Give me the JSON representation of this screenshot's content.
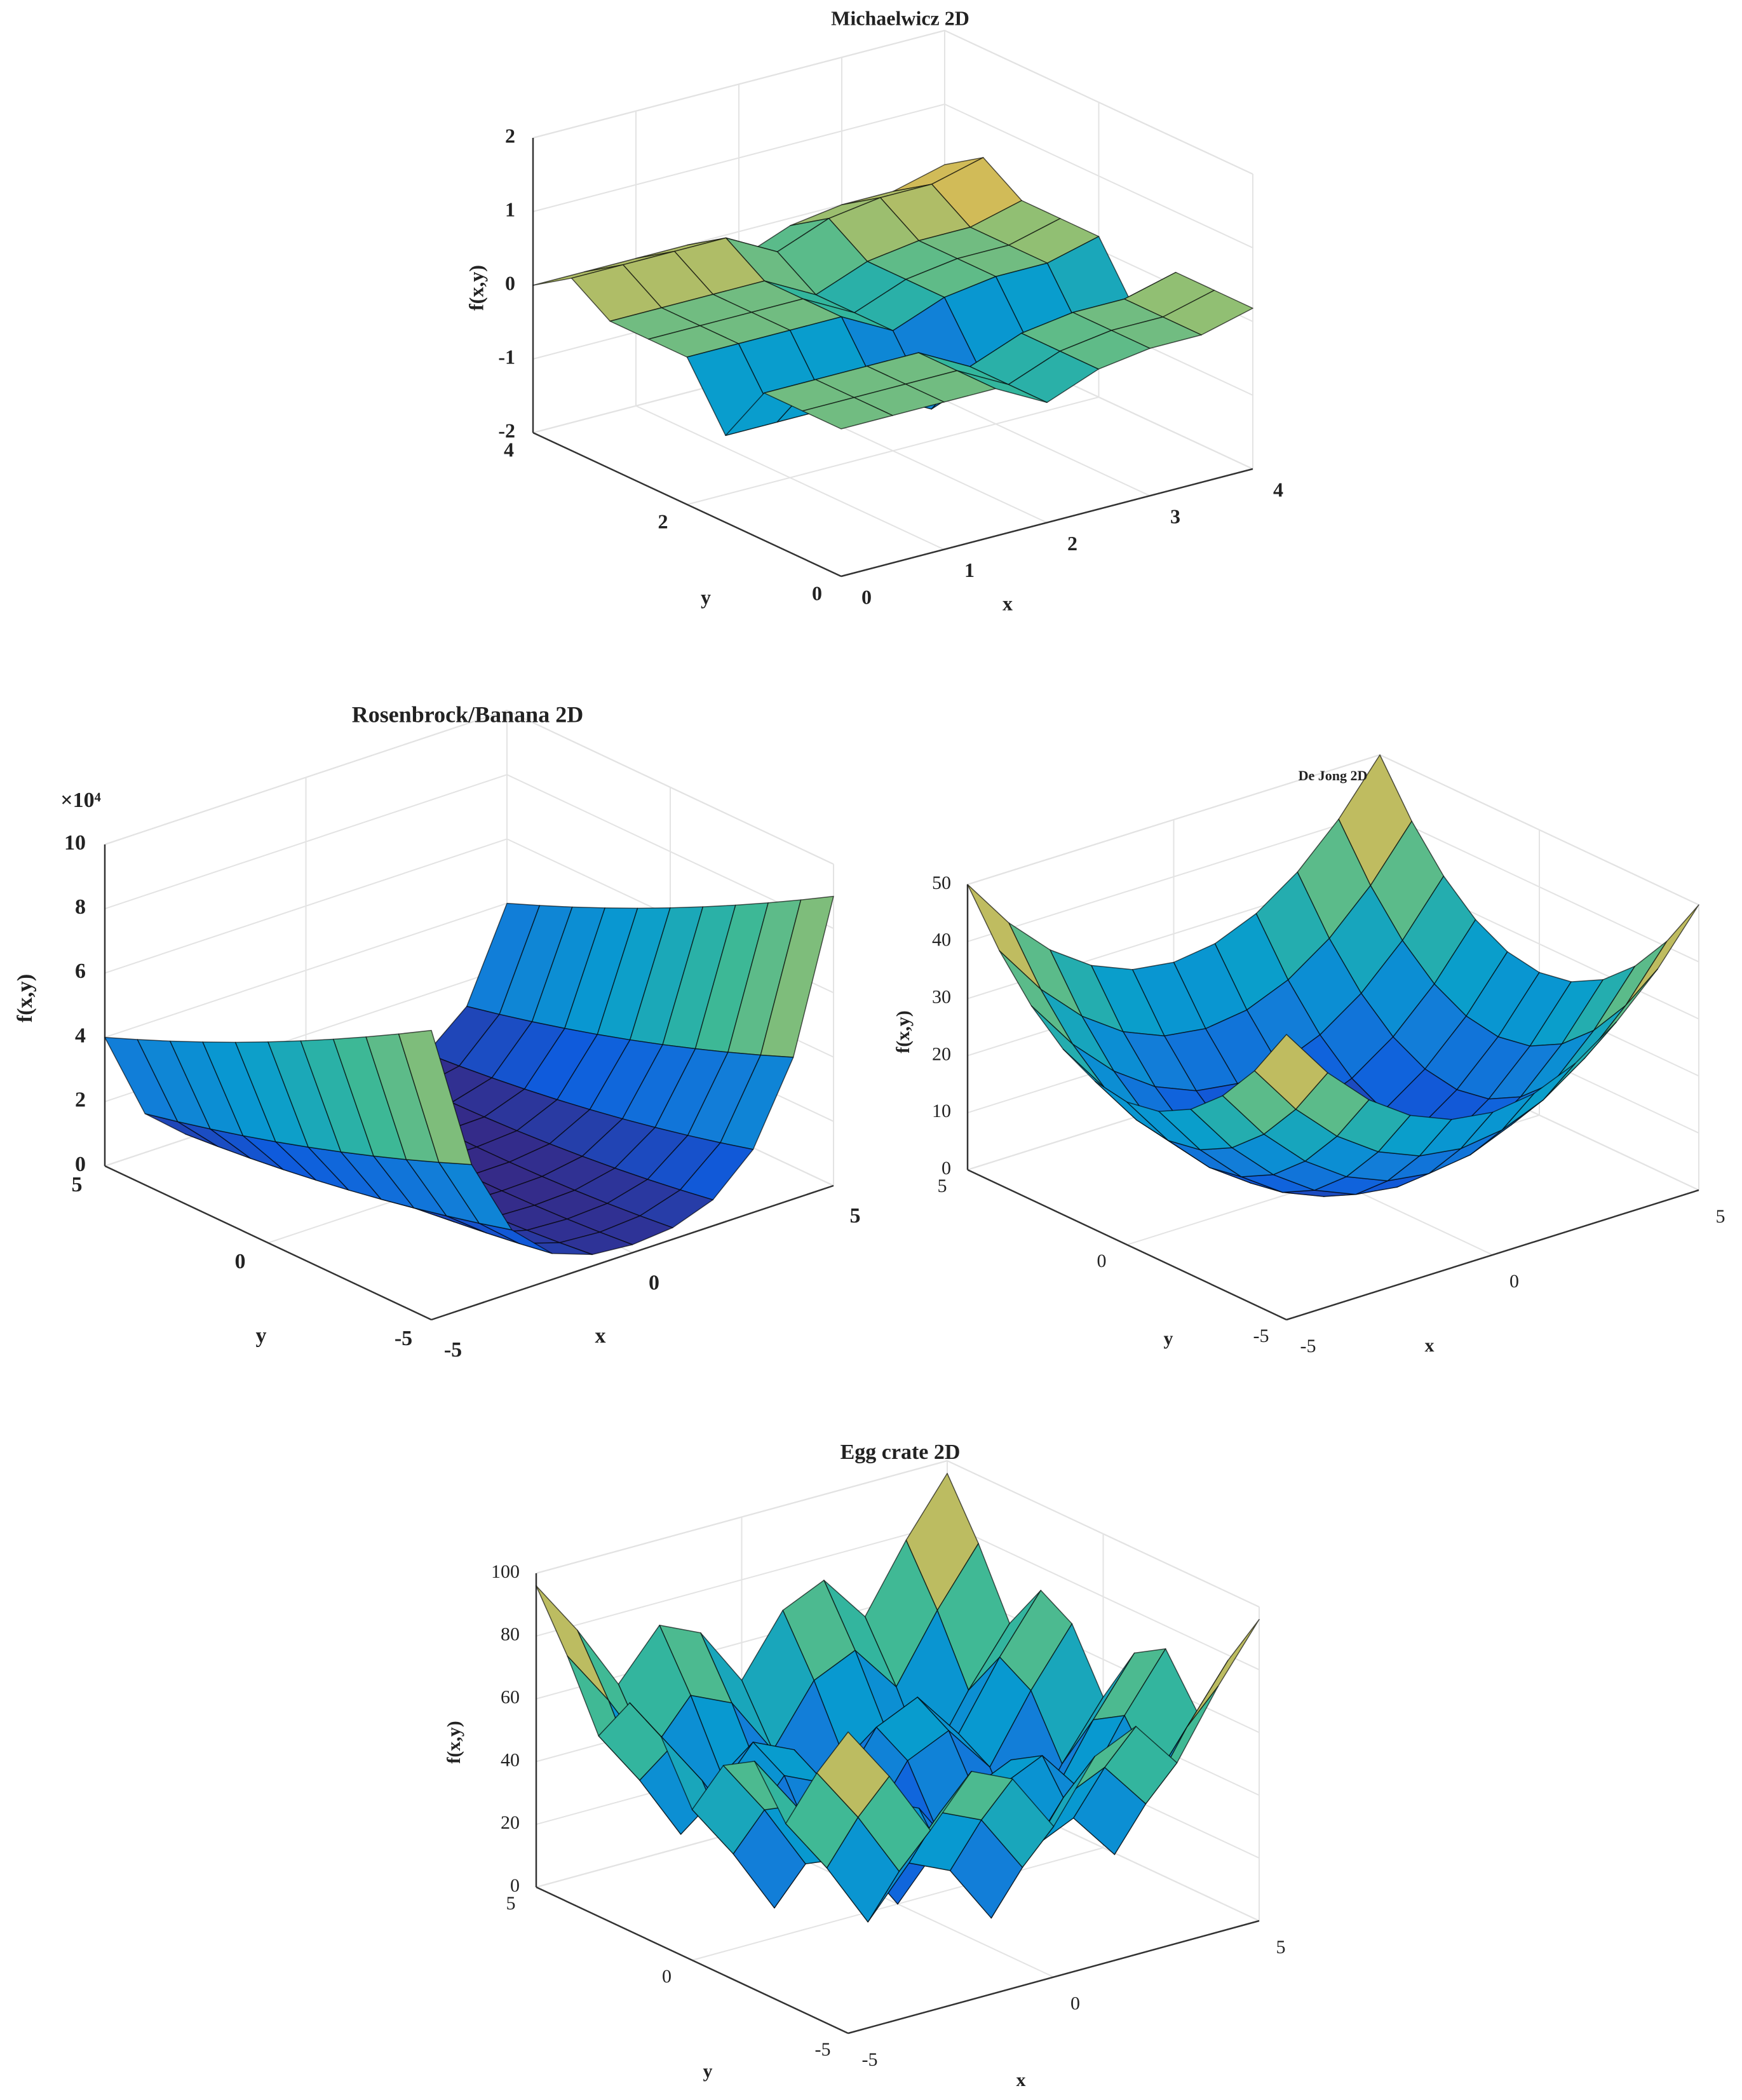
{
  "chart_data": [
    {
      "type": "surface",
      "title": "Michaelwicz 2D",
      "xlabel": "x",
      "ylabel": "y",
      "zlabel": "f(x,y)",
      "x": [
        0,
        0.5,
        1,
        1.5,
        2,
        2.5,
        3,
        3.5,
        4
      ],
      "y": [
        0,
        0.5,
        1,
        1.5,
        2,
        2.5,
        3,
        3.5,
        4
      ],
      "z": [
        [
          0,
          0,
          0,
          0,
          -0.37,
          -0.1,
          0,
          0,
          0.18
        ],
        [
          0,
          0,
          0,
          0,
          -0.37,
          -0.1,
          0,
          0,
          0.18
        ],
        [
          0,
          0,
          0,
          0,
          -0.37,
          -0.1,
          0,
          0,
          0.18
        ],
        [
          -0.82,
          -0.82,
          -0.82,
          -0.82,
          -1.19,
          -0.92,
          -0.82,
          -0.82,
          -0.64
        ],
        [
          0,
          0,
          0,
          0,
          -0.37,
          -0.1,
          0,
          0,
          0.18
        ],
        [
          0,
          0,
          0,
          0,
          -0.37,
          -0.1,
          0,
          0,
          0.18
        ],
        [
          0,
          0,
          0,
          0,
          -0.37,
          -0.1,
          0,
          0,
          0.18
        ],
        [
          0.34,
          0.34,
          0.34,
          0.34,
          -0.03,
          0.24,
          0.34,
          0.34,
          0.52
        ],
        [
          0,
          0,
          0,
          0,
          -0.37,
          -0.1,
          0,
          0,
          0.18
        ]
      ],
      "xlim": [
        0,
        4
      ],
      "ylim": [
        0,
        4
      ],
      "zlim": [
        -2,
        2
      ],
      "xticks": [
        0,
        1,
        2,
        3,
        4
      ],
      "yticks": [
        0,
        2,
        4
      ],
      "zticks": [
        -2,
        -1,
        0,
        1,
        2
      ],
      "grid": true,
      "colormap": "parula"
    },
    {
      "type": "surface",
      "title": "Rosenbrock/Banana 2D",
      "xlabel": "x",
      "ylabel": "y",
      "zlabel": "f(x,y)",
      "zexponent": "×10⁴",
      "x": [
        -5,
        -4,
        -3,
        -2,
        -1,
        0,
        1,
        2,
        3,
        4,
        5
      ],
      "y": [
        -5,
        -4,
        -3,
        -2,
        -1,
        0,
        1,
        2,
        3,
        4,
        5
      ],
      "z": [
        [
          9,
          4.41,
          1.96,
          0.81,
          0.36,
          0.25,
          0.36,
          0.81,
          1.96,
          4.41,
          9
        ],
        [
          8.41,
          4,
          1.69,
          0.64,
          0.25,
          0.16,
          0.25,
          0.64,
          1.69,
          4,
          8.41
        ],
        [
          7.84,
          3.61,
          1.44,
          0.49,
          0.16,
          0.09,
          0.16,
          0.49,
          1.44,
          3.61,
          7.84
        ],
        [
          7.29,
          3.24,
          1.21,
          0.36,
          0.09,
          0.04,
          0.09,
          0.36,
          1.21,
          3.24,
          7.29
        ],
        [
          6.76,
          2.89,
          1,
          0.25,
          0.04,
          0.01,
          0.04,
          0.25,
          1,
          2.89,
          6.76
        ],
        [
          6.25,
          2.56,
          0.81,
          0.16,
          0.01,
          0,
          0.01,
          0.16,
          0.81,
          2.56,
          6.25
        ],
        [
          5.76,
          2.25,
          0.64,
          0.09,
          0,
          0.01,
          0,
          0.09,
          0.64,
          2.25,
          5.76
        ],
        [
          5.29,
          1.96,
          0.49,
          0.04,
          0.01,
          0.04,
          0.01,
          0.04,
          0.49,
          1.96,
          5.29
        ],
        [
          4.84,
          1.69,
          0.36,
          0.01,
          0.04,
          0.09,
          0.04,
          0.01,
          0.36,
          1.69,
          4.84
        ],
        [
          4.41,
          1.44,
          0.25,
          0,
          0.09,
          0.16,
          0.09,
          0,
          0.25,
          1.44,
          4.41
        ],
        [
          4,
          1.21,
          0.16,
          0.01,
          0.16,
          0.25,
          0.16,
          0.01,
          0.16,
          1.21,
          4
        ]
      ],
      "xlim": [
        -5,
        5
      ],
      "ylim": [
        -5,
        5
      ],
      "zlim": [
        0,
        10
      ],
      "xticks": [
        -5,
        0,
        5
      ],
      "yticks": [
        -5,
        0,
        5
      ],
      "zticks": [
        0,
        2,
        4,
        6,
        8,
        10
      ],
      "grid": true,
      "colormap": "parula"
    },
    {
      "type": "surface",
      "title": "De Jong 2D",
      "xlabel": "x",
      "ylabel": "y",
      "zlabel": "f(x,y)",
      "x": [
        -5,
        -4,
        -3,
        -2,
        -1,
        0,
        1,
        2,
        3,
        4,
        5
      ],
      "y": [
        -5,
        -4,
        -3,
        -2,
        -1,
        0,
        1,
        2,
        3,
        4,
        5
      ],
      "z": [
        [
          50,
          41,
          34,
          29,
          26,
          25,
          26,
          29,
          34,
          41,
          50
        ],
        [
          41,
          32,
          25,
          20,
          17,
          16,
          17,
          20,
          25,
          32,
          41
        ],
        [
          34,
          25,
          18,
          13,
          10,
          9,
          10,
          13,
          18,
          25,
          34
        ],
        [
          29,
          20,
          13,
          8,
          5,
          4,
          5,
          8,
          13,
          20,
          29
        ],
        [
          26,
          17,
          10,
          5,
          2,
          1,
          2,
          5,
          10,
          17,
          26
        ],
        [
          25,
          16,
          9,
          4,
          1,
          0,
          1,
          4,
          9,
          16,
          25
        ],
        [
          26,
          17,
          10,
          5,
          2,
          1,
          2,
          5,
          10,
          17,
          26
        ],
        [
          29,
          20,
          13,
          8,
          5,
          4,
          5,
          8,
          13,
          20,
          29
        ],
        [
          34,
          25,
          18,
          13,
          10,
          9,
          10,
          13,
          18,
          25,
          34
        ],
        [
          41,
          32,
          25,
          20,
          17,
          16,
          17,
          20,
          25,
          32,
          41
        ],
        [
          50,
          41,
          34,
          29,
          26,
          25,
          26,
          29,
          34,
          41,
          50
        ]
      ],
      "xlim": [
        -5,
        5
      ],
      "ylim": [
        -5,
        5
      ],
      "zlim": [
        0,
        50
      ],
      "xticks": [
        -5,
        0,
        5
      ],
      "yticks": [
        -5,
        0,
        5
      ],
      "zticks": [
        0,
        10,
        20,
        30,
        40,
        50
      ],
      "grid": true,
      "colormap": "parula"
    },
    {
      "type": "surface",
      "title": "Egg crate 2D",
      "xlabel": "x",
      "ylabel": "y",
      "zlabel": "f(x,y)",
      "x": [
        -5,
        -4,
        -3,
        -2,
        -1,
        0,
        1,
        2,
        3,
        4,
        5
      ],
      "y": [
        -5,
        -4,
        -3,
        -2,
        -1,
        0,
        1,
        2,
        3,
        4,
        5
      ],
      "z": [
        [
          96,
          78.3,
          57.5,
          72.7,
          66.7,
          48,
          66.7,
          72.7,
          57.5,
          78.3,
          96
        ],
        [
          78.3,
          60.6,
          39.8,
          55,
          49,
          30.3,
          49,
          55,
          39.8,
          60.6,
          78.3
        ],
        [
          57.5,
          39.8,
          19,
          34.2,
          28.2,
          9.5,
          28.2,
          34.2,
          19,
          39.8,
          57.5
        ],
        [
          72.7,
          55,
          34.2,
          49.4,
          43.4,
          24.7,
          43.4,
          49.4,
          34.2,
          55,
          72.7
        ],
        [
          66.7,
          49,
          28.2,
          43.4,
          37.4,
          18.7,
          37.4,
          43.4,
          28.2,
          49,
          66.7
        ],
        [
          48,
          30.3,
          9.5,
          24.7,
          18.7,
          0,
          18.7,
          24.7,
          9.5,
          30.3,
          48
        ],
        [
          66.7,
          49,
          28.2,
          43.4,
          37.4,
          18.7,
          37.4,
          43.4,
          28.2,
          49,
          66.7
        ],
        [
          72.7,
          55,
          34.2,
          49.4,
          43.4,
          24.7,
          43.4,
          49.4,
          34.2,
          55,
          72.7
        ],
        [
          57.5,
          39.8,
          19,
          34.2,
          28.2,
          9.5,
          28.2,
          34.2,
          19,
          39.8,
          57.5
        ],
        [
          78.3,
          60.6,
          39.8,
          55,
          49,
          30.3,
          49,
          55,
          39.8,
          60.6,
          78.3
        ],
        [
          96,
          78.3,
          57.5,
          72.7,
          66.7,
          48,
          66.7,
          72.7,
          57.5,
          78.3,
          96
        ]
      ],
      "xlim": [
        -5,
        5
      ],
      "ylim": [
        -5,
        5
      ],
      "zlim": [
        0,
        100
      ],
      "xticks": [
        -5,
        0,
        5
      ],
      "yticks": [
        -5,
        0,
        5
      ],
      "zticks": [
        0,
        20,
        40,
        60,
        80,
        100
      ],
      "grid": true,
      "colormap": "parula"
    }
  ]
}
